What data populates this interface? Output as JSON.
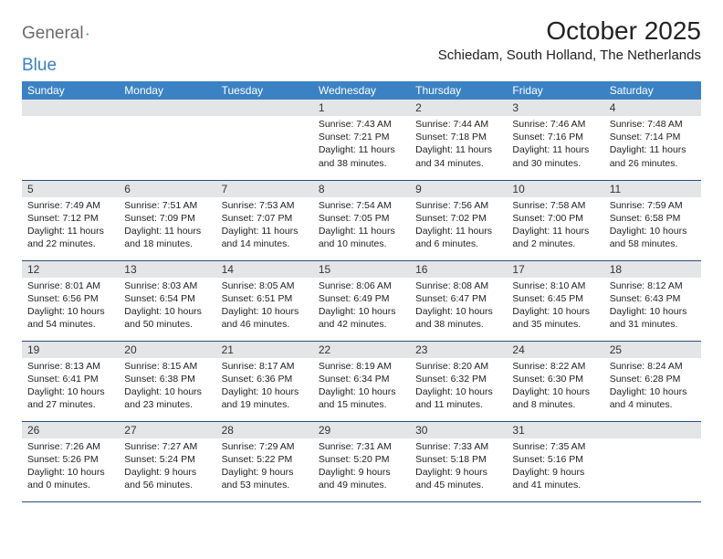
{
  "logo": {
    "textGray": "General",
    "textBlue": "Blue"
  },
  "title": "October 2025",
  "location": "Schiedam, South Holland, The Netherlands",
  "colors": {
    "headerBg": "#3b82c4",
    "headerText": "#ffffff",
    "dayNumBg": "#e4e5e7",
    "borderColor": "#2b4e7a",
    "logoGray": "#6b6b6b",
    "logoBlue": "#3b82c4"
  },
  "dayNames": [
    "Sunday",
    "Monday",
    "Tuesday",
    "Wednesday",
    "Thursday",
    "Friday",
    "Saturday"
  ],
  "weeks": [
    [
      {
        "num": "",
        "sunrise": "",
        "sunset": "",
        "daylight": ""
      },
      {
        "num": "",
        "sunrise": "",
        "sunset": "",
        "daylight": ""
      },
      {
        "num": "",
        "sunrise": "",
        "sunset": "",
        "daylight": ""
      },
      {
        "num": "1",
        "sunrise": "Sunrise: 7:43 AM",
        "sunset": "Sunset: 7:21 PM",
        "daylight": "Daylight: 11 hours and 38 minutes."
      },
      {
        "num": "2",
        "sunrise": "Sunrise: 7:44 AM",
        "sunset": "Sunset: 7:18 PM",
        "daylight": "Daylight: 11 hours and 34 minutes."
      },
      {
        "num": "3",
        "sunrise": "Sunrise: 7:46 AM",
        "sunset": "Sunset: 7:16 PM",
        "daylight": "Daylight: 11 hours and 30 minutes."
      },
      {
        "num": "4",
        "sunrise": "Sunrise: 7:48 AM",
        "sunset": "Sunset: 7:14 PM",
        "daylight": "Daylight: 11 hours and 26 minutes."
      }
    ],
    [
      {
        "num": "5",
        "sunrise": "Sunrise: 7:49 AM",
        "sunset": "Sunset: 7:12 PM",
        "daylight": "Daylight: 11 hours and 22 minutes."
      },
      {
        "num": "6",
        "sunrise": "Sunrise: 7:51 AM",
        "sunset": "Sunset: 7:09 PM",
        "daylight": "Daylight: 11 hours and 18 minutes."
      },
      {
        "num": "7",
        "sunrise": "Sunrise: 7:53 AM",
        "sunset": "Sunset: 7:07 PM",
        "daylight": "Daylight: 11 hours and 14 minutes."
      },
      {
        "num": "8",
        "sunrise": "Sunrise: 7:54 AM",
        "sunset": "Sunset: 7:05 PM",
        "daylight": "Daylight: 11 hours and 10 minutes."
      },
      {
        "num": "9",
        "sunrise": "Sunrise: 7:56 AM",
        "sunset": "Sunset: 7:02 PM",
        "daylight": "Daylight: 11 hours and 6 minutes."
      },
      {
        "num": "10",
        "sunrise": "Sunrise: 7:58 AM",
        "sunset": "Sunset: 7:00 PM",
        "daylight": "Daylight: 11 hours and 2 minutes."
      },
      {
        "num": "11",
        "sunrise": "Sunrise: 7:59 AM",
        "sunset": "Sunset: 6:58 PM",
        "daylight": "Daylight: 10 hours and 58 minutes."
      }
    ],
    [
      {
        "num": "12",
        "sunrise": "Sunrise: 8:01 AM",
        "sunset": "Sunset: 6:56 PM",
        "daylight": "Daylight: 10 hours and 54 minutes."
      },
      {
        "num": "13",
        "sunrise": "Sunrise: 8:03 AM",
        "sunset": "Sunset: 6:54 PM",
        "daylight": "Daylight: 10 hours and 50 minutes."
      },
      {
        "num": "14",
        "sunrise": "Sunrise: 8:05 AM",
        "sunset": "Sunset: 6:51 PM",
        "daylight": "Daylight: 10 hours and 46 minutes."
      },
      {
        "num": "15",
        "sunrise": "Sunrise: 8:06 AM",
        "sunset": "Sunset: 6:49 PM",
        "daylight": "Daylight: 10 hours and 42 minutes."
      },
      {
        "num": "16",
        "sunrise": "Sunrise: 8:08 AM",
        "sunset": "Sunset: 6:47 PM",
        "daylight": "Daylight: 10 hours and 38 minutes."
      },
      {
        "num": "17",
        "sunrise": "Sunrise: 8:10 AM",
        "sunset": "Sunset: 6:45 PM",
        "daylight": "Daylight: 10 hours and 35 minutes."
      },
      {
        "num": "18",
        "sunrise": "Sunrise: 8:12 AM",
        "sunset": "Sunset: 6:43 PM",
        "daylight": "Daylight: 10 hours and 31 minutes."
      }
    ],
    [
      {
        "num": "19",
        "sunrise": "Sunrise: 8:13 AM",
        "sunset": "Sunset: 6:41 PM",
        "daylight": "Daylight: 10 hours and 27 minutes."
      },
      {
        "num": "20",
        "sunrise": "Sunrise: 8:15 AM",
        "sunset": "Sunset: 6:38 PM",
        "daylight": "Daylight: 10 hours and 23 minutes."
      },
      {
        "num": "21",
        "sunrise": "Sunrise: 8:17 AM",
        "sunset": "Sunset: 6:36 PM",
        "daylight": "Daylight: 10 hours and 19 minutes."
      },
      {
        "num": "22",
        "sunrise": "Sunrise: 8:19 AM",
        "sunset": "Sunset: 6:34 PM",
        "daylight": "Daylight: 10 hours and 15 minutes."
      },
      {
        "num": "23",
        "sunrise": "Sunrise: 8:20 AM",
        "sunset": "Sunset: 6:32 PM",
        "daylight": "Daylight: 10 hours and 11 minutes."
      },
      {
        "num": "24",
        "sunrise": "Sunrise: 8:22 AM",
        "sunset": "Sunset: 6:30 PM",
        "daylight": "Daylight: 10 hours and 8 minutes."
      },
      {
        "num": "25",
        "sunrise": "Sunrise: 8:24 AM",
        "sunset": "Sunset: 6:28 PM",
        "daylight": "Daylight: 10 hours and 4 minutes."
      }
    ],
    [
      {
        "num": "26",
        "sunrise": "Sunrise: 7:26 AM",
        "sunset": "Sunset: 5:26 PM",
        "daylight": "Daylight: 10 hours and 0 minutes."
      },
      {
        "num": "27",
        "sunrise": "Sunrise: 7:27 AM",
        "sunset": "Sunset: 5:24 PM",
        "daylight": "Daylight: 9 hours and 56 minutes."
      },
      {
        "num": "28",
        "sunrise": "Sunrise: 7:29 AM",
        "sunset": "Sunset: 5:22 PM",
        "daylight": "Daylight: 9 hours and 53 minutes."
      },
      {
        "num": "29",
        "sunrise": "Sunrise: 7:31 AM",
        "sunset": "Sunset: 5:20 PM",
        "daylight": "Daylight: 9 hours and 49 minutes."
      },
      {
        "num": "30",
        "sunrise": "Sunrise: 7:33 AM",
        "sunset": "Sunset: 5:18 PM",
        "daylight": "Daylight: 9 hours and 45 minutes."
      },
      {
        "num": "31",
        "sunrise": "Sunrise: 7:35 AM",
        "sunset": "Sunset: 5:16 PM",
        "daylight": "Daylight: 9 hours and 41 minutes."
      },
      {
        "num": "",
        "sunrise": "",
        "sunset": "",
        "daylight": ""
      }
    ]
  ]
}
